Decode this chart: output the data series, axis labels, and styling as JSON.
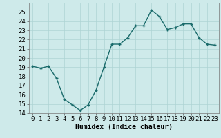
{
  "x": [
    0,
    1,
    2,
    3,
    4,
    5,
    6,
    7,
    8,
    9,
    10,
    11,
    12,
    13,
    14,
    15,
    16,
    17,
    18,
    19,
    20,
    21,
    22,
    23
  ],
  "y": [
    19.1,
    18.9,
    19.1,
    17.8,
    15.5,
    14.9,
    14.3,
    14.9,
    16.5,
    19.0,
    21.5,
    21.5,
    22.2,
    23.5,
    23.5,
    25.2,
    24.5,
    23.1,
    23.3,
    23.7,
    23.7,
    22.2,
    21.5,
    21.4
  ],
  "line_color": "#1a6b6b",
  "marker": "+",
  "marker_size": 3,
  "bg_color": "#ceeaea",
  "grid_color": "#aed4d4",
  "xlabel": "Humidex (Indice chaleur)",
  "xlim": [
    -0.5,
    23.5
  ],
  "ylim": [
    14,
    26
  ],
  "yticks": [
    14,
    15,
    16,
    17,
    18,
    19,
    20,
    21,
    22,
    23,
    24,
    25
  ],
  "xticks": [
    0,
    1,
    2,
    3,
    4,
    5,
    6,
    7,
    8,
    9,
    10,
    11,
    12,
    13,
    14,
    15,
    16,
    17,
    18,
    19,
    20,
    21,
    22,
    23
  ],
  "xlabel_fontsize": 7,
  "tick_fontsize": 6.5,
  "line_width": 1.0
}
